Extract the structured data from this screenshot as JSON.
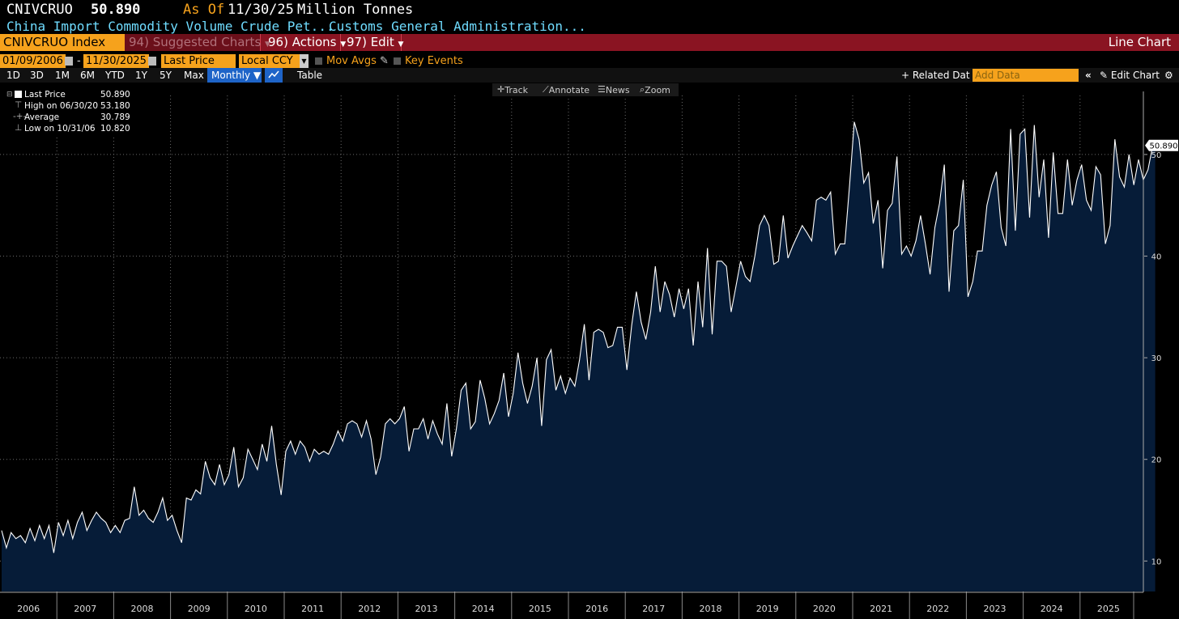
{
  "header": {
    "ticker": "CNIVCRUO",
    "last_value": "50.890",
    "as_of_label": "As Of",
    "as_of_date": "11/30/25",
    "units": "Million Tonnes",
    "description": "China Import Commodity Volume Crude Pet...",
    "source": "Customs General Administration..."
  },
  "menubar": {
    "security": "CNIVCRUO Index",
    "suggested_charts": "94) Suggested Charts",
    "actions": "96) Actions",
    "edit": "97) Edit",
    "chart_type": "Line Chart"
  },
  "controls": {
    "start_date": "01/09/2006",
    "date_separator": "-",
    "end_date": "11/30/2025",
    "field": "Last Price",
    "currency": "Local CCY",
    "mov_avgs": "Mov Avgs",
    "key_events": "Key Events"
  },
  "periods": [
    "1D",
    "3D",
    "1M",
    "6M",
    "YTD",
    "1Y",
    "5Y",
    "Max"
  ],
  "frequency": "Monthly ▼",
  "table_label": "Table",
  "related_data": "+ Related Dat",
  "add_data_placeholder": "Add Data",
  "edit_chart": "Edit Chart",
  "toolbar": {
    "track": "Track",
    "annotate": "Annotate",
    "news": "News",
    "zoom": "Zoom"
  },
  "legend": {
    "last_label": "Last Price",
    "last_value": "50.890",
    "high_label": "High on 06/30/20",
    "high_value": "53.180",
    "avg_label": "Average",
    "avg_value": "30.789",
    "low_label": "Low on 10/31/06",
    "low_value": "10.820"
  },
  "colors": {
    "accent_orange": "#f6a21c",
    "menubar_red": "#8a1422",
    "line": "#ffffff",
    "area": "#061c38",
    "cyan": "#6fdcff"
  },
  "chart_data": {
    "type": "area",
    "title": "China Import Commodity Volume Crude Pet...",
    "ylabel": "Million Tonnes",
    "ylim": [
      7,
      57
    ],
    "yticks": [
      10,
      20,
      30,
      40,
      50
    ],
    "years": [
      "2006",
      "2007",
      "2008",
      "2009",
      "2010",
      "2011",
      "2012",
      "2013",
      "2014",
      "2015",
      "2016",
      "2017",
      "2018",
      "2019",
      "2020",
      "2021",
      "2022",
      "2023",
      "2024",
      "2025"
    ],
    "x_start": 2006.0,
    "x_step": 0.0833,
    "last_value_label": "50.890",
    "series": [
      {
        "name": "Last Price",
        "values": [
          13,
          11.3,
          12.8,
          12.2,
          12.5,
          11.8,
          13.2,
          12,
          13.5,
          12.2,
          13.5,
          10.8,
          13.8,
          12.5,
          14,
          12.2,
          13.8,
          14.8,
          13,
          14,
          14.8,
          14.2,
          13.8,
          12.8,
          13.5,
          12.8,
          14,
          14.2,
          17.3,
          14.5,
          15,
          14.2,
          13.8,
          14.8,
          16.2,
          14,
          14.5,
          13,
          11.8,
          16.2,
          16,
          17,
          16.6,
          19.8,
          18.2,
          17.5,
          19.5,
          17.5,
          18.5,
          21.2,
          17.3,
          18.2,
          21,
          20,
          19,
          21.5,
          19.8,
          23.3,
          19.5,
          16.5,
          20.8,
          21.8,
          20.5,
          21.8,
          21.2,
          19.8,
          21,
          20.5,
          20.8,
          20.5,
          21.5,
          22.8,
          21.8,
          23.5,
          23.8,
          23.5,
          22.2,
          23.8,
          22,
          18.5,
          20.2,
          23.5,
          24,
          23.5,
          24,
          25.2,
          20.8,
          23,
          23,
          24,
          22,
          23.8,
          22.5,
          21.5,
          25.5,
          20.3,
          23,
          26.8,
          27.5,
          23,
          23.7,
          27.8,
          26,
          23.5,
          24.5,
          25.8,
          28.5,
          24.2,
          26.5,
          30.5,
          27.5,
          25.5,
          27.2,
          30,
          23.3,
          29.8,
          30.8,
          26.8,
          28.2,
          26.5,
          28,
          27.2,
          29.8,
          33.3,
          27.8,
          32.5,
          32.8,
          32.5,
          31,
          31.2,
          33,
          33,
          28.8,
          33.2,
          36.5,
          33.5,
          31.8,
          34.5,
          39,
          34.5,
          37.5,
          36.2,
          34,
          36.8,
          34.8,
          36.8,
          31.2,
          37.5,
          33,
          40.8,
          32.3,
          39.5,
          39.5,
          39,
          34.5,
          37,
          39.5,
          38,
          37.5,
          40,
          43,
          44,
          43,
          39.2,
          39.5,
          44,
          39.8,
          41,
          42,
          43,
          42.3,
          41.5,
          45.5,
          45.8,
          45.5,
          46.3,
          40.2,
          41.2,
          41.2,
          47,
          53.2,
          51.5,
          47.2,
          48.2,
          43.2,
          45.5,
          38.8,
          44.5,
          45.2,
          49.8,
          40.2,
          41,
          40,
          41.5,
          44,
          41.2,
          38.2,
          42.8,
          45.2,
          49,
          36.5,
          42.5,
          43,
          47.5,
          36,
          37.5,
          40.5,
          40.5,
          45,
          47,
          48.3,
          42.8,
          41,
          52.5,
          42.5,
          52,
          52.5,
          43.8,
          52.9,
          45.8,
          49.5,
          41.8,
          50.2,
          44.2,
          44.2,
          49.5,
          45,
          47.5,
          49,
          45.5,
          44.5,
          48.8,
          48,
          41.2,
          43,
          51.5,
          47.8,
          46.8,
          50,
          47,
          49.5,
          47.5,
          48.5,
          50.89
        ]
      }
    ]
  }
}
